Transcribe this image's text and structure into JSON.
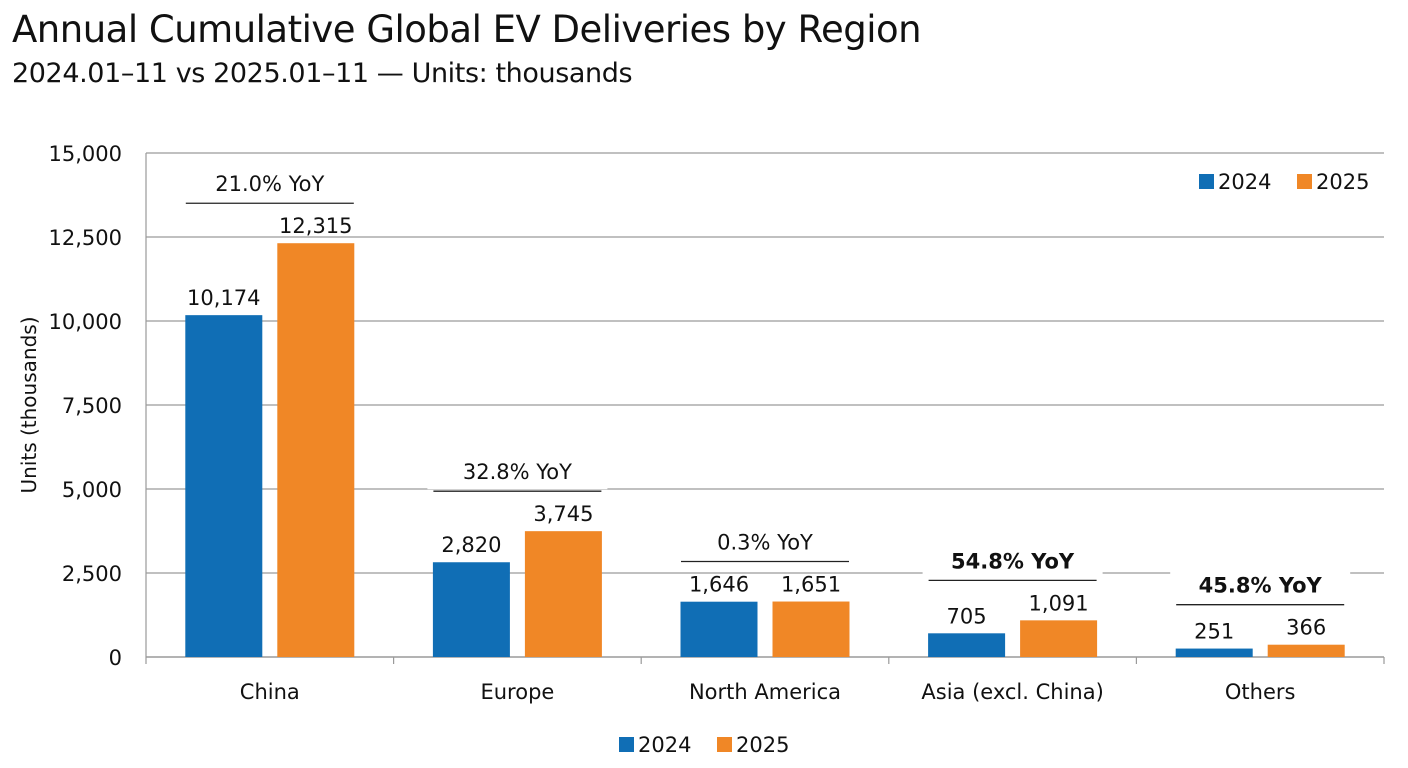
{
  "chart_data": {
    "type": "bar",
    "title": "Annual Cumulative Global EV Deliveries by Region",
    "subtitle": "2024.01–11 vs 2025.01–11 — Units: thousands",
    "xlabel": "",
    "ylabel": "Units (thousands)",
    "ylim": [
      0,
      15000
    ],
    "yticks": [
      0,
      2500,
      5000,
      7500,
      10000,
      12500,
      15000
    ],
    "ytick_labels": [
      "0",
      "2,500",
      "5,000",
      "7,500",
      "10,000",
      "12,500",
      "15,000"
    ],
    "grid": true,
    "categories": [
      "China",
      "Europe",
      "North America",
      "Asia (excl. China)",
      "Others"
    ],
    "series": [
      {
        "name": "2024",
        "color": "#106EB5",
        "values": [
          10174,
          2820,
          1646,
          705,
          251
        ],
        "labels": [
          "10,174",
          "2,820",
          "1,646",
          "705",
          "251"
        ]
      },
      {
        "name": "2025",
        "color": "#F08726",
        "values": [
          12315,
          3745,
          1651,
          1091,
          366
        ],
        "labels": [
          "12,315",
          "3,745",
          "1,651",
          "1,091",
          "366"
        ]
      }
    ],
    "annotations": [
      {
        "category": "China",
        "text": "21.0% YoY",
        "bold": false
      },
      {
        "category": "Europe",
        "text": "32.8% YoY",
        "bold": false
      },
      {
        "category": "North America",
        "text": "0.3% YoY",
        "bold": false
      },
      {
        "category": "Asia (excl. China)",
        "text": "54.8% YoY",
        "bold": true
      },
      {
        "category": "Others",
        "text": "45.8% YoY",
        "bold": true
      }
    ],
    "legend": {
      "entries": [
        "2024",
        "2025"
      ],
      "placement": [
        "top-right",
        "bottom-center"
      ]
    }
  }
}
